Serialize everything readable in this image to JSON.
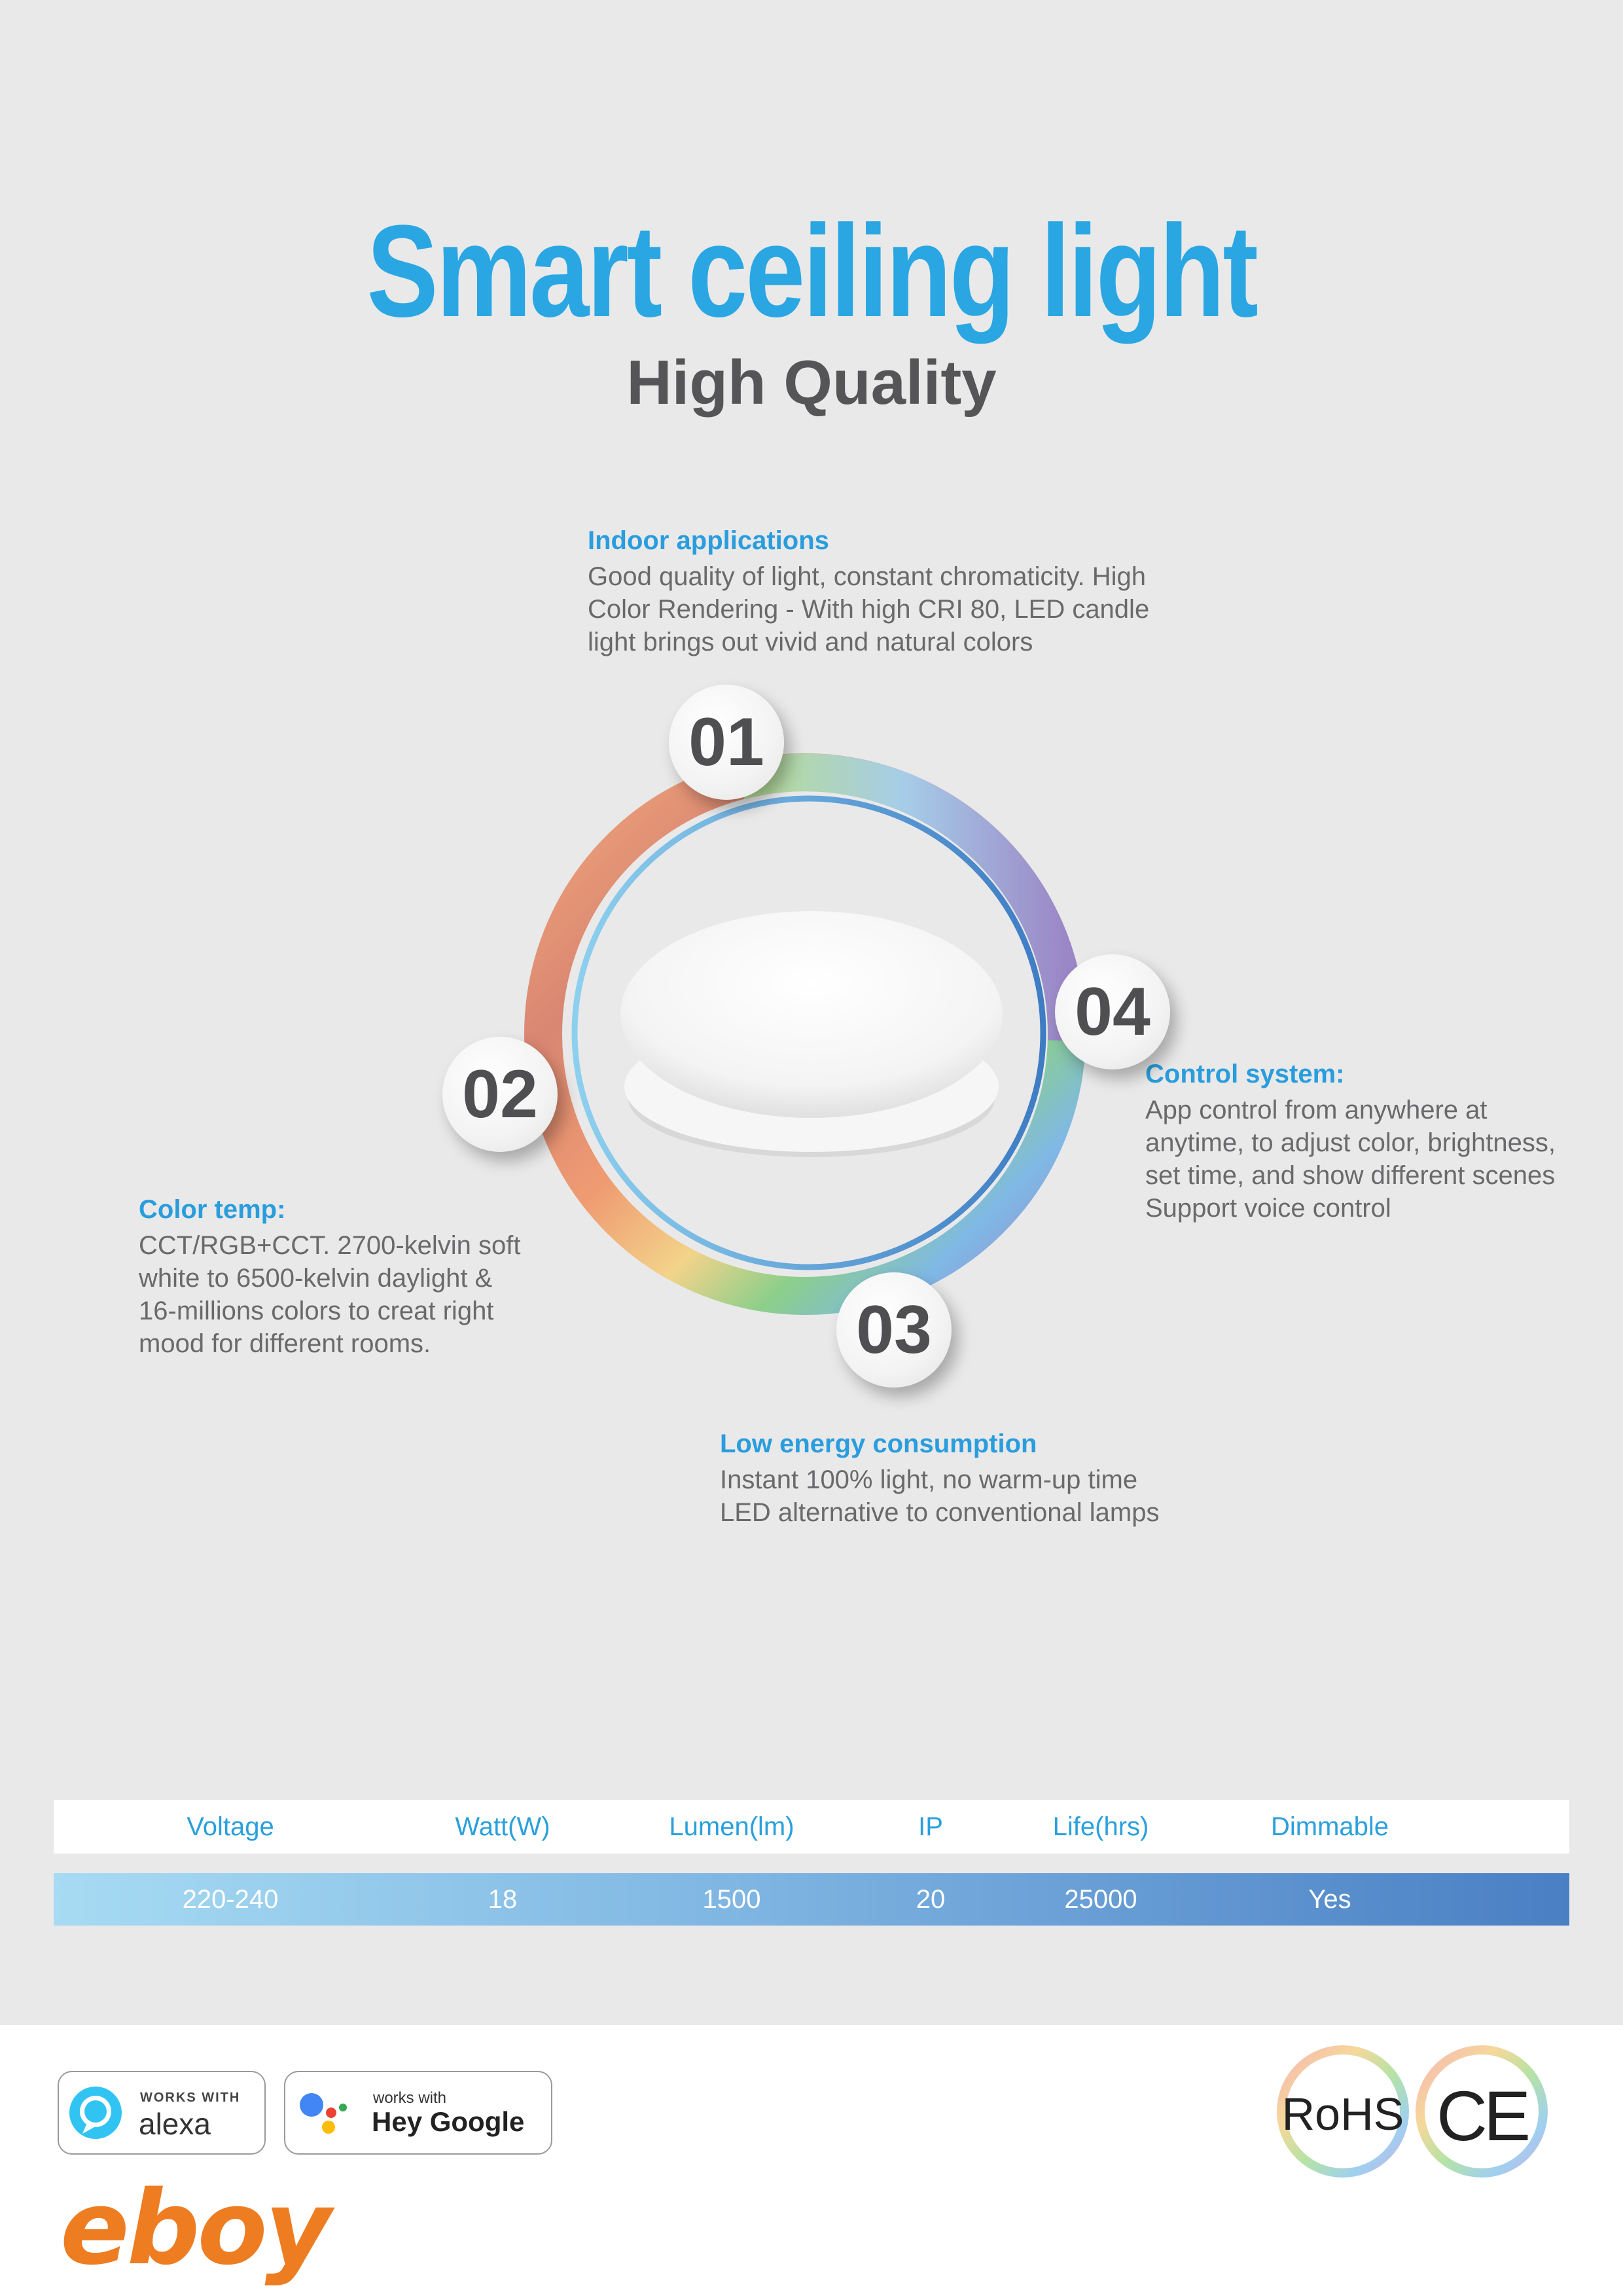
{
  "header": {
    "title": "Smart ceiling light",
    "subtitle": "High Quality"
  },
  "features": [
    {
      "number": "01",
      "title": "Indoor applications",
      "lines": [
        "Good quality of light, constant chromaticity. High",
        "Color Rendering - With high CRI 80, LED candle",
        "light brings out vivid and natural colors"
      ]
    },
    {
      "number": "02",
      "title": "Color temp:",
      "lines": [
        "CCT/RGB+CCT. 2700-kelvin soft",
        "white to 6500-kelvin daylight &",
        "16-millions colors to creat right",
        "mood for different rooms."
      ]
    },
    {
      "number": "03",
      "title": "Low energy consumption",
      "lines": [
        "Instant 100% light, no warm-up time",
        "LED alternative to conventional lamps"
      ]
    },
    {
      "number": "04",
      "title": "Control system:",
      "lines": [
        "App control from anywhere at",
        "anytime, to adjust color, brightness,",
        "set time, and show different scenes",
        "Support voice control"
      ]
    }
  ],
  "specs": {
    "headers": [
      "Voltage",
      "Watt(W)",
      "Lumen(lm)",
      "IP",
      "Life(hrs)",
      "Dimmable"
    ],
    "values": [
      "220-240",
      "18",
      "1500",
      "20",
      "25000",
      "Yes"
    ]
  },
  "footer": {
    "alexa": {
      "top": "WORKS WITH",
      "name": "alexa"
    },
    "google": {
      "top": "works with",
      "name": "Hey Google"
    },
    "brand": "eboy",
    "certifications": [
      "RoHS",
      "CE"
    ]
  },
  "colors": {
    "accent": "#2aa7e2",
    "brand_orange": "#ee7d22",
    "brand_blue": "#1b75bc"
  }
}
